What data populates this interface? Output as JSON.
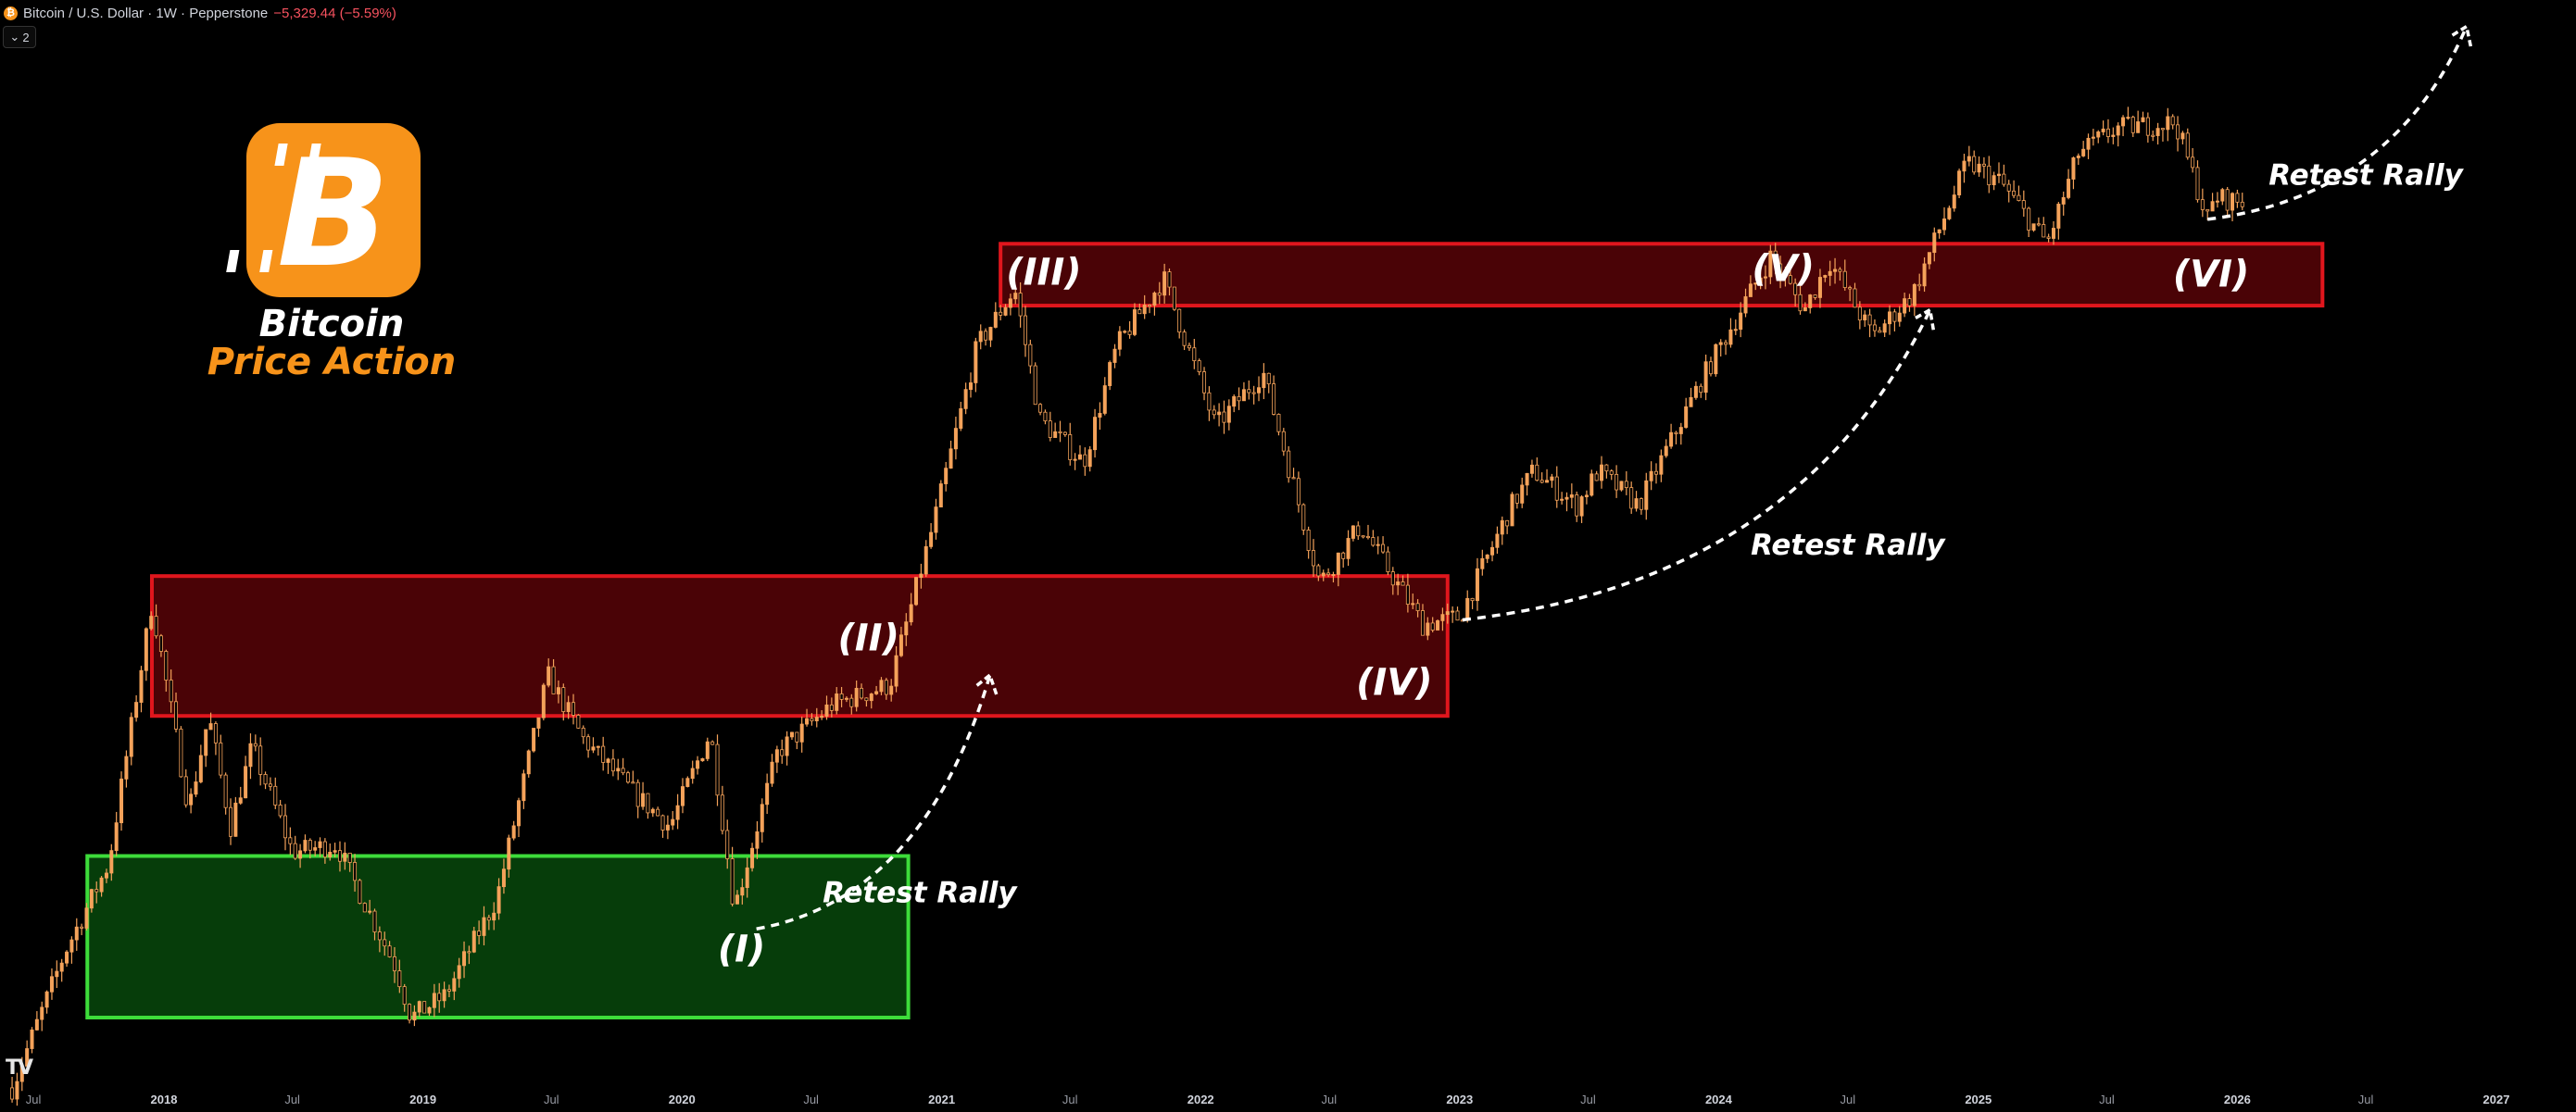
{
  "header": {
    "symbol": "Bitcoin / U.S. Dollar · 1W · Pepperstone",
    "change": "−5,329.44 (−5.59%)",
    "coin_glyph": "₿",
    "collapse_count": "2"
  },
  "branding": {
    "logo_icon": "bitcoin-icon",
    "logo_glyph": "B",
    "title_line1": "Bitcoin",
    "title_line2": "Price Action",
    "accent": "#f7931a",
    "watermark": "TV"
  },
  "colors": {
    "background": "#000000",
    "candle": "#f4a25a",
    "resistance_fill": "#4a0306",
    "resistance_stroke": "#e0161d",
    "support_fill": "#063d0a",
    "support_stroke": "#3ddc3a"
  },
  "chart_data": {
    "type": "candlestick",
    "title": "",
    "interval": "1W",
    "x_tick_labels": [
      "Jul",
      "2018",
      "Jul",
      "2019",
      "Jul",
      "2020",
      "Jul",
      "2021",
      "Jul",
      "2022",
      "Jul",
      "2023",
      "Jul",
      "2024",
      "Jul",
      "2025",
      "Jul",
      "2026",
      "Jul",
      "2027"
    ],
    "x_tick_dates": [
      "2017-07-01",
      "2018-01-01",
      "2018-07-01",
      "2019-01-01",
      "2019-07-01",
      "2020-01-01",
      "2020-07-01",
      "2021-01-01",
      "2021-07-01",
      "2022-01-01",
      "2022-07-01",
      "2023-01-01",
      "2023-07-01",
      "2024-01-01",
      "2024-07-01",
      "2025-01-01",
      "2025-07-01",
      "2026-01-01",
      "2026-07-01",
      "2027-01-01"
    ],
    "price_path": [
      [
        "2017-06-01",
        2400
      ],
      [
        "2017-08-15",
        4200
      ],
      [
        "2017-10-15",
        6000
      ],
      [
        "2017-12-15",
        17500
      ],
      [
        "2018-02-05",
        7500
      ],
      [
        "2018-03-05",
        11000
      ],
      [
        "2018-04-05",
        7000
      ],
      [
        "2018-05-05",
        9700
      ],
      [
        "2018-07-01",
        6300
      ],
      [
        "2018-09-01",
        6500
      ],
      [
        "2018-11-25",
        3900
      ],
      [
        "2018-12-15",
        3200
      ],
      [
        "2019-02-01",
        3500
      ],
      [
        "2019-04-15",
        5200
      ],
      [
        "2019-06-26",
        13000
      ],
      [
        "2019-08-15",
        10000
      ],
      [
        "2019-10-26",
        8000
      ],
      [
        "2019-12-15",
        7000
      ],
      [
        "2020-02-10",
        10300
      ],
      [
        "2020-03-15",
        5000
      ],
      [
        "2020-05-15",
        9500
      ],
      [
        "2020-07-30",
        11500
      ],
      [
        "2020-10-20",
        12500
      ],
      [
        "2020-12-20",
        24000
      ],
      [
        "2021-02-20",
        50000
      ],
      [
        "2021-04-14",
        63000
      ],
      [
        "2021-05-20",
        37000
      ],
      [
        "2021-07-20",
        31000
      ],
      [
        "2021-09-05",
        50000
      ],
      [
        "2021-11-10",
        66000
      ],
      [
        "2022-01-22",
        36000
      ],
      [
        "2022-03-30",
        45000
      ],
      [
        "2022-06-18",
        19000
      ],
      [
        "2022-08-14",
        24000
      ],
      [
        "2022-11-10",
        16000
      ],
      [
        "2023-01-01",
        16500
      ],
      [
        "2023-03-15",
        26000
      ],
      [
        "2023-04-15",
        30000
      ],
      [
        "2023-06-15",
        26000
      ],
      [
        "2023-07-15",
        30000
      ],
      [
        "2023-09-10",
        26000
      ],
      [
        "2023-12-10",
        44000
      ],
      [
        "2024-03-14",
        72000
      ],
      [
        "2024-05-01",
        58000
      ],
      [
        "2024-06-05",
        71000
      ],
      [
        "2024-08-05",
        52000
      ],
      [
        "2024-10-01",
        62000
      ],
      [
        "2024-12-16",
        106000
      ],
      [
        "2025-02-01",
        98000
      ],
      [
        "2025-04-08",
        76000
      ],
      [
        "2025-05-22",
        110000
      ],
      [
        "2025-07-14",
        122000
      ],
      [
        "2025-10-06",
        125000
      ],
      [
        "2025-11-20",
        84000
      ],
      [
        "2025-12-01",
        92000
      ],
      [
        "2026-01-10",
        90000
      ]
    ],
    "zones": [
      {
        "kind": "support",
        "start": "2017-09-15",
        "end": "2020-11-15",
        "low": 3200,
        "high": 6200
      },
      {
        "kind": "resistance",
        "start": "2017-12-15",
        "end": "2022-12-15",
        "low": 11000,
        "high": 19500
      },
      {
        "kind": "resistance",
        "start": "2021-03-25",
        "end": "2026-05-01",
        "low": 59000,
        "high": 76000
      }
    ],
    "annotations": [
      {
        "text": "(I)",
        "date": "2020-03-25",
        "price": 4200
      },
      {
        "text": "(II)",
        "date": "2020-09-20",
        "price": 15000
      },
      {
        "text": "(III)",
        "date": "2021-05-25",
        "price": 67000
      },
      {
        "text": "(IV)",
        "date": "2022-10-01",
        "price": 12500
      },
      {
        "text": "(V)",
        "date": "2024-04-01",
        "price": 68000
      },
      {
        "text": "(VI)",
        "date": "2025-11-25",
        "price": 66500
      },
      {
        "text": "Retest Rally",
        "date": "2020-12-01",
        "price": 5300
      },
      {
        "text": "Retest Rally",
        "date": "2024-07-01",
        "price": 22000
      },
      {
        "text": "Retest Rally",
        "date": "2026-07-01",
        "price": 100000
      }
    ],
    "arrows": [
      {
        "from": [
          "2020-04-15",
          4600
        ],
        "to": [
          "2021-03-10",
          13000
        ]
      },
      {
        "from": [
          "2023-01-05",
          16300
        ],
        "to": [
          "2024-10-25",
          58000
        ]
      },
      {
        "from": [
          "2025-11-20",
          84000
        ],
        "to": [
          "2026-11-20",
          185000
        ]
      }
    ],
    "scale": "log"
  }
}
